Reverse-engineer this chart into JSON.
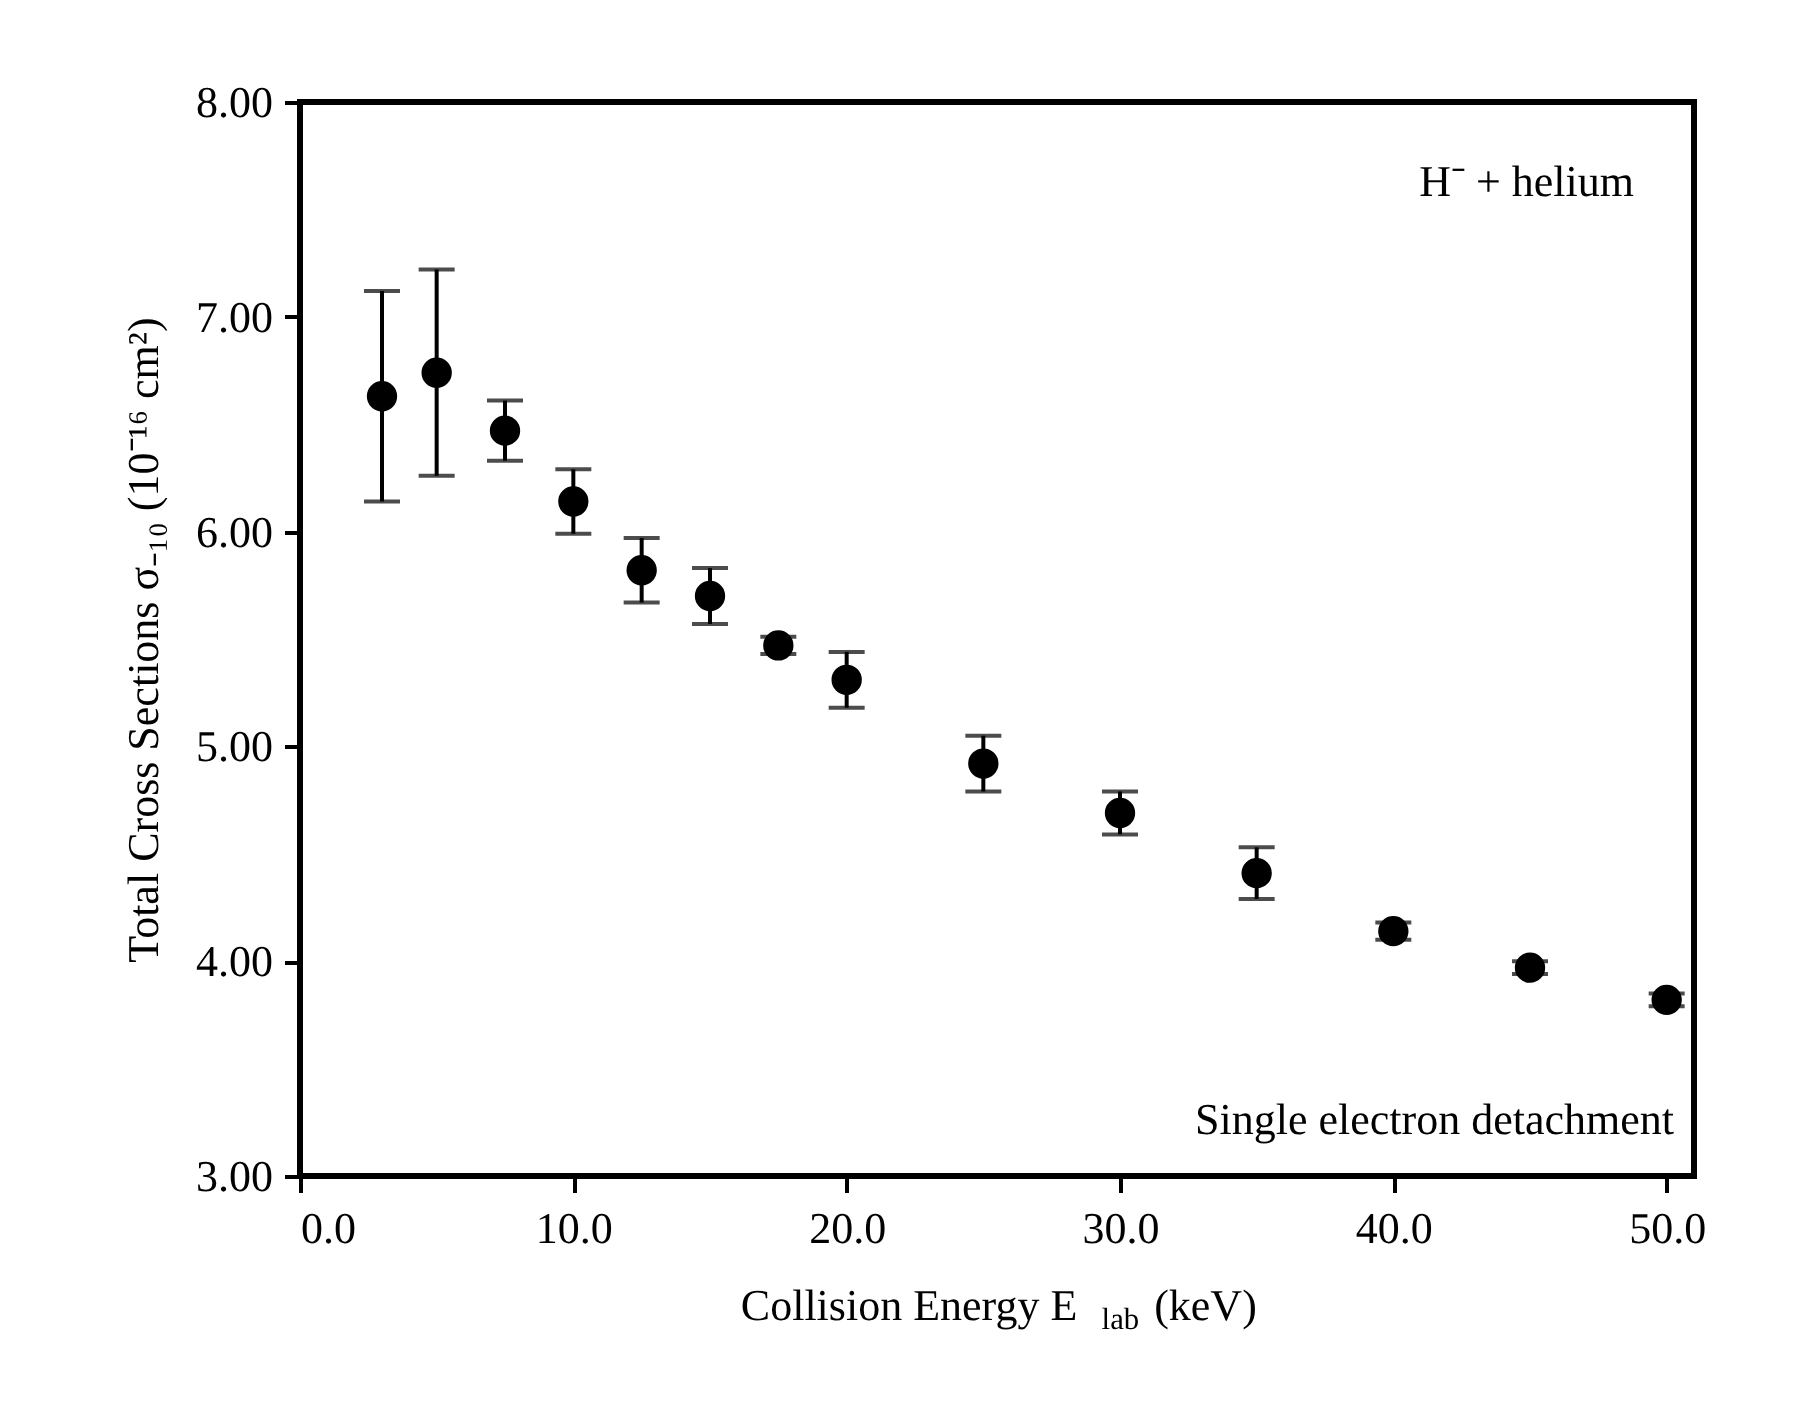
{
  "chart_data": {
    "type": "scatter",
    "xlabel": "Collision Energy   E$_{lab}$ (keV)",
    "ylabel": "Total Cross Sections σ₋₁₀ (10⁻¹⁶ cm²)",
    "x": [
      3,
      5,
      7.5,
      10,
      12.5,
      15,
      17.5,
      20,
      25,
      30,
      35,
      40,
      45,
      50
    ],
    "series": [
      {
        "color": "#000000",
        "values": [
          6.63,
          6.74,
          6.47,
          6.14,
          5.82,
          5.7,
          5.47,
          5.31,
          4.92,
          4.69,
          4.41,
          4.14,
          3.97,
          3.82
        ],
        "errors": [
          0.49,
          0.48,
          0.14,
          0.15,
          0.15,
          0.13,
          0.04,
          0.13,
          0.13,
          0.1,
          0.12,
          0.04,
          0.03,
          0.03
        ]
      }
    ],
    "xlim": [
      0,
      51
    ],
    "ylim": [
      3,
      8
    ],
    "xticks": [
      {
        "value": 0,
        "label": "0.0"
      },
      {
        "value": 10,
        "label": "10.0"
      },
      {
        "value": 20,
        "label": "20.0"
      },
      {
        "value": 30,
        "label": "30.0"
      },
      {
        "value": 40,
        "label": "40.0"
      },
      {
        "value": 50,
        "label": "50.0"
      }
    ],
    "yticks": [
      {
        "value": 3,
        "label": "3.00"
      },
      {
        "value": 4,
        "label": "4.00"
      },
      {
        "value": 5,
        "label": "5.00"
      },
      {
        "value": 6,
        "label": "6.00"
      },
      {
        "value": 7,
        "label": "7.00"
      },
      {
        "value": 8,
        "label": "8.00"
      }
    ],
    "annotations": [
      "H⁻ + helium",
      "Single electron detachment"
    ],
    "marker": "circle",
    "grid": false
  }
}
